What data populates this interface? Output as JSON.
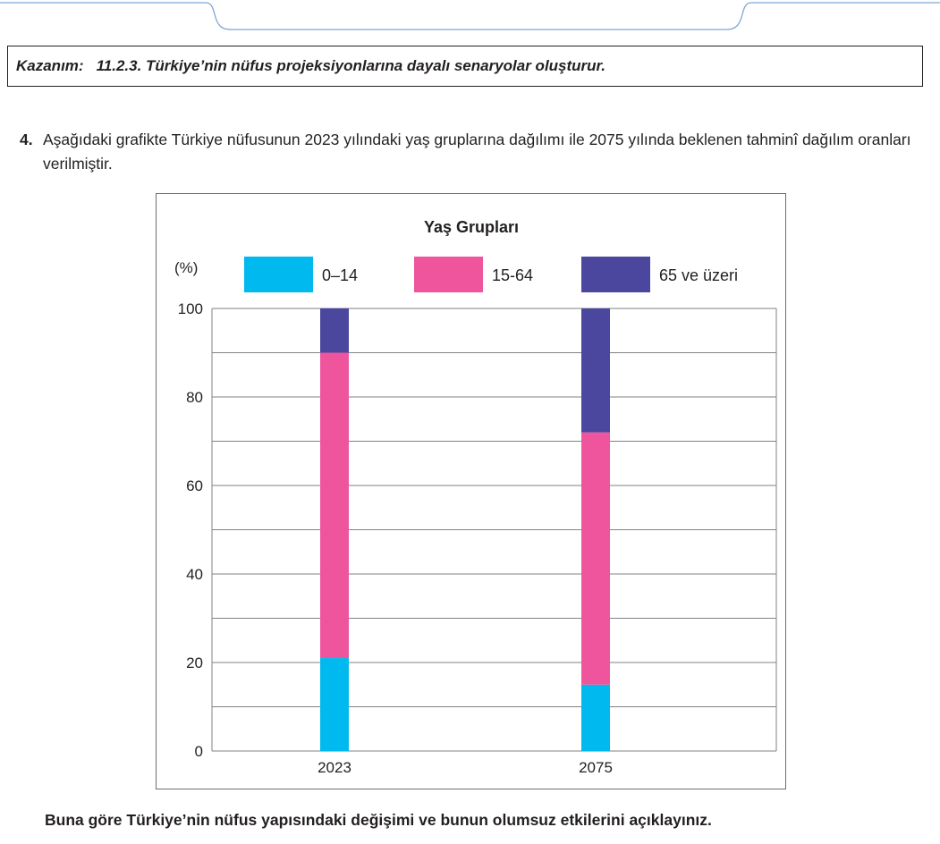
{
  "kazanim": {
    "label": "Kazanım:",
    "text": "11.2.3. Türkiye’nin nüfus projeksiyonlarına dayalı senaryolar oluşturur."
  },
  "question": {
    "number": "4.",
    "text": "Aşağıdaki grafikte Türkiye nüfusunun 2023 yılındaki yaş gruplarına dağılımı ile 2075 yılında beklenen tahminî dağılım oranları verilmiştir."
  },
  "final_question": "Buna göre Türkiye’nin nüfus yapısındaki değişimi ve bunun olumsuz etkilerini açıklayınız.",
  "chart_data": {
    "type": "bar",
    "stacked": true,
    "title": "Yaş Grupları",
    "ylabel": "(%)",
    "xlabel": "",
    "ylim": [
      0,
      100
    ],
    "yticks": [
      0,
      20,
      40,
      60,
      80,
      100
    ],
    "grid": true,
    "legend_position": "top",
    "categories": [
      "2023",
      "2075"
    ],
    "series": [
      {
        "name": "0–14",
        "color": "#00b9ef",
        "values": [
          21,
          15
        ]
      },
      {
        "name": "15-64",
        "color": "#ef559c",
        "values": [
          69,
          57
        ]
      },
      {
        "name": "65 ve üzeri",
        "color": "#4b479f",
        "values": [
          10,
          28
        ]
      }
    ]
  }
}
